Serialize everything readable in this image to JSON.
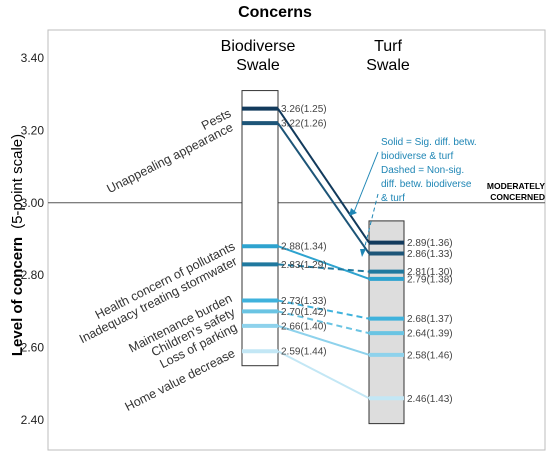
{
  "chart_data": {
    "type": "slope",
    "title": "Concerns",
    "ylabel": "Level of concern",
    "ylabel_unit": "(5-point scale)",
    "ylim": [
      2.37,
      3.42
    ],
    "yticks": [
      "3.40",
      "3.20",
      "3.00",
      "2.80",
      "2.60",
      "2.40"
    ],
    "ytick_values": [
      3.4,
      3.2,
      3.0,
      2.8,
      2.6,
      2.4
    ],
    "columns": [
      {
        "line1": "Biodiverse",
        "line2": "Swale",
        "box_range": [
          2.55,
          3.31
        ]
      },
      {
        "line1": "Turf",
        "line2": "Swale",
        "box_range": [
          2.39,
          2.95
        ]
      }
    ],
    "reference_line": {
      "value": 3.0,
      "label_line1": "MODERATELY",
      "label_line2": "CONCERNED"
    },
    "note_lines": [
      "Solid = Sig. diff. betw.",
      "biodiverse & turf",
      "Dashed = Non-sig.",
      "diff. betw. biodiverse",
      "& turf"
    ],
    "series": [
      {
        "name": "Pests",
        "biodiverse": 3.26,
        "biodiverse_label": "3.26(1.25)",
        "turf": 2.89,
        "turf_label": "2.89(1.36)",
        "significant": true,
        "color": "#123a5c"
      },
      {
        "name": "Unappealing appearance",
        "biodiverse": 3.22,
        "biodiverse_label": "3.22(1.26)",
        "turf": 2.86,
        "turf_label": "2.86(1.33)",
        "significant": true,
        "color": "#1d5578"
      },
      {
        "name": "Health concern of pollutants",
        "biodiverse": 2.88,
        "biodiverse_label": "2.88(1.34)",
        "turf": 2.79,
        "turf_label": "2.79(1.38)",
        "significant": true,
        "color": "#2ea3cf"
      },
      {
        "name": "Inadequacy treating stormwater",
        "biodiverse": 2.83,
        "biodiverse_label": "2.83(1.29)",
        "turf": 2.81,
        "turf_label": "2.81(1.30)",
        "significant": false,
        "color": "#20799f"
      },
      {
        "name": "Maintenance burden",
        "biodiverse": 2.73,
        "biodiverse_label": "2.73(1.33)",
        "turf": 2.68,
        "turf_label": "2.68(1.37)",
        "significant": false,
        "color": "#3fb2dc"
      },
      {
        "name": "Children's safety",
        "biodiverse": 2.7,
        "biodiverse_label": "2.70(1.42)",
        "turf": 2.64,
        "turf_label": "2.64(1.39)",
        "significant": false,
        "color": "#6ac4e3"
      },
      {
        "name": "Loss of parking",
        "biodiverse": 2.66,
        "biodiverse_label": "2.66(1.40)",
        "turf": 2.58,
        "turf_label": "2.58(1.46)",
        "significant": true,
        "color": "#8ed2ec"
      },
      {
        "name": "Home value decrease",
        "biodiverse": 2.59,
        "biodiverse_label": "2.59(1.44)",
        "turf": 2.46,
        "turf_label": "2.46(1.43)",
        "significant": true,
        "color": "#c3e7f5"
      }
    ],
    "grid": false
  }
}
